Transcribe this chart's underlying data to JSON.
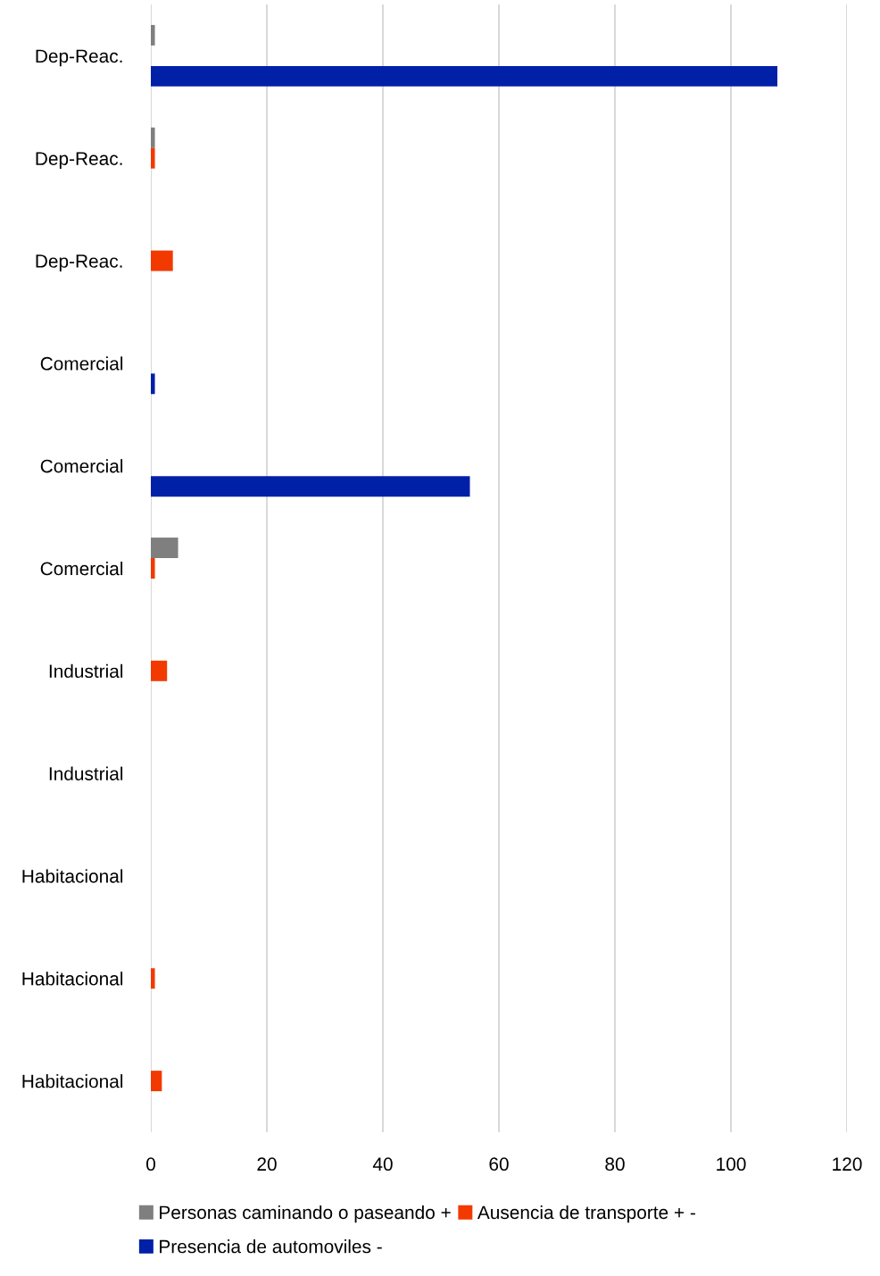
{
  "chart_data": {
    "type": "bar",
    "orientation": "horizontal",
    "categories": [
      "Dep-Reac.",
      "Dep-Reac.",
      "Dep-Reac.",
      "Comercial",
      "Comercial",
      "Comercial",
      "Industrial",
      "Industrial",
      "Habitacional",
      "Habitacional",
      "Habitacional"
    ],
    "series": [
      {
        "name": "Personas caminando o paseando +",
        "color": "#7f7f7f",
        "values": [
          0.7,
          0.7,
          null,
          null,
          null,
          4.7,
          null,
          null,
          null,
          null,
          null
        ]
      },
      {
        "name": "Ausencia de transporte + -",
        "color": "#f23a00",
        "values": [
          null,
          0.7,
          3.8,
          null,
          null,
          0.7,
          2.8,
          null,
          null,
          0.7,
          1.9
        ]
      },
      {
        "name": "Presencia de automoviles -",
        "color": "#0020a8",
        "values": [
          108,
          null,
          null,
          0.7,
          55,
          null,
          null,
          null,
          null,
          null,
          null
        ]
      }
    ],
    "xlim": [
      0,
      120
    ],
    "xticks": [
      0,
      20,
      40,
      60,
      80,
      100,
      120
    ],
    "grid": "x",
    "legend": "bottom"
  }
}
